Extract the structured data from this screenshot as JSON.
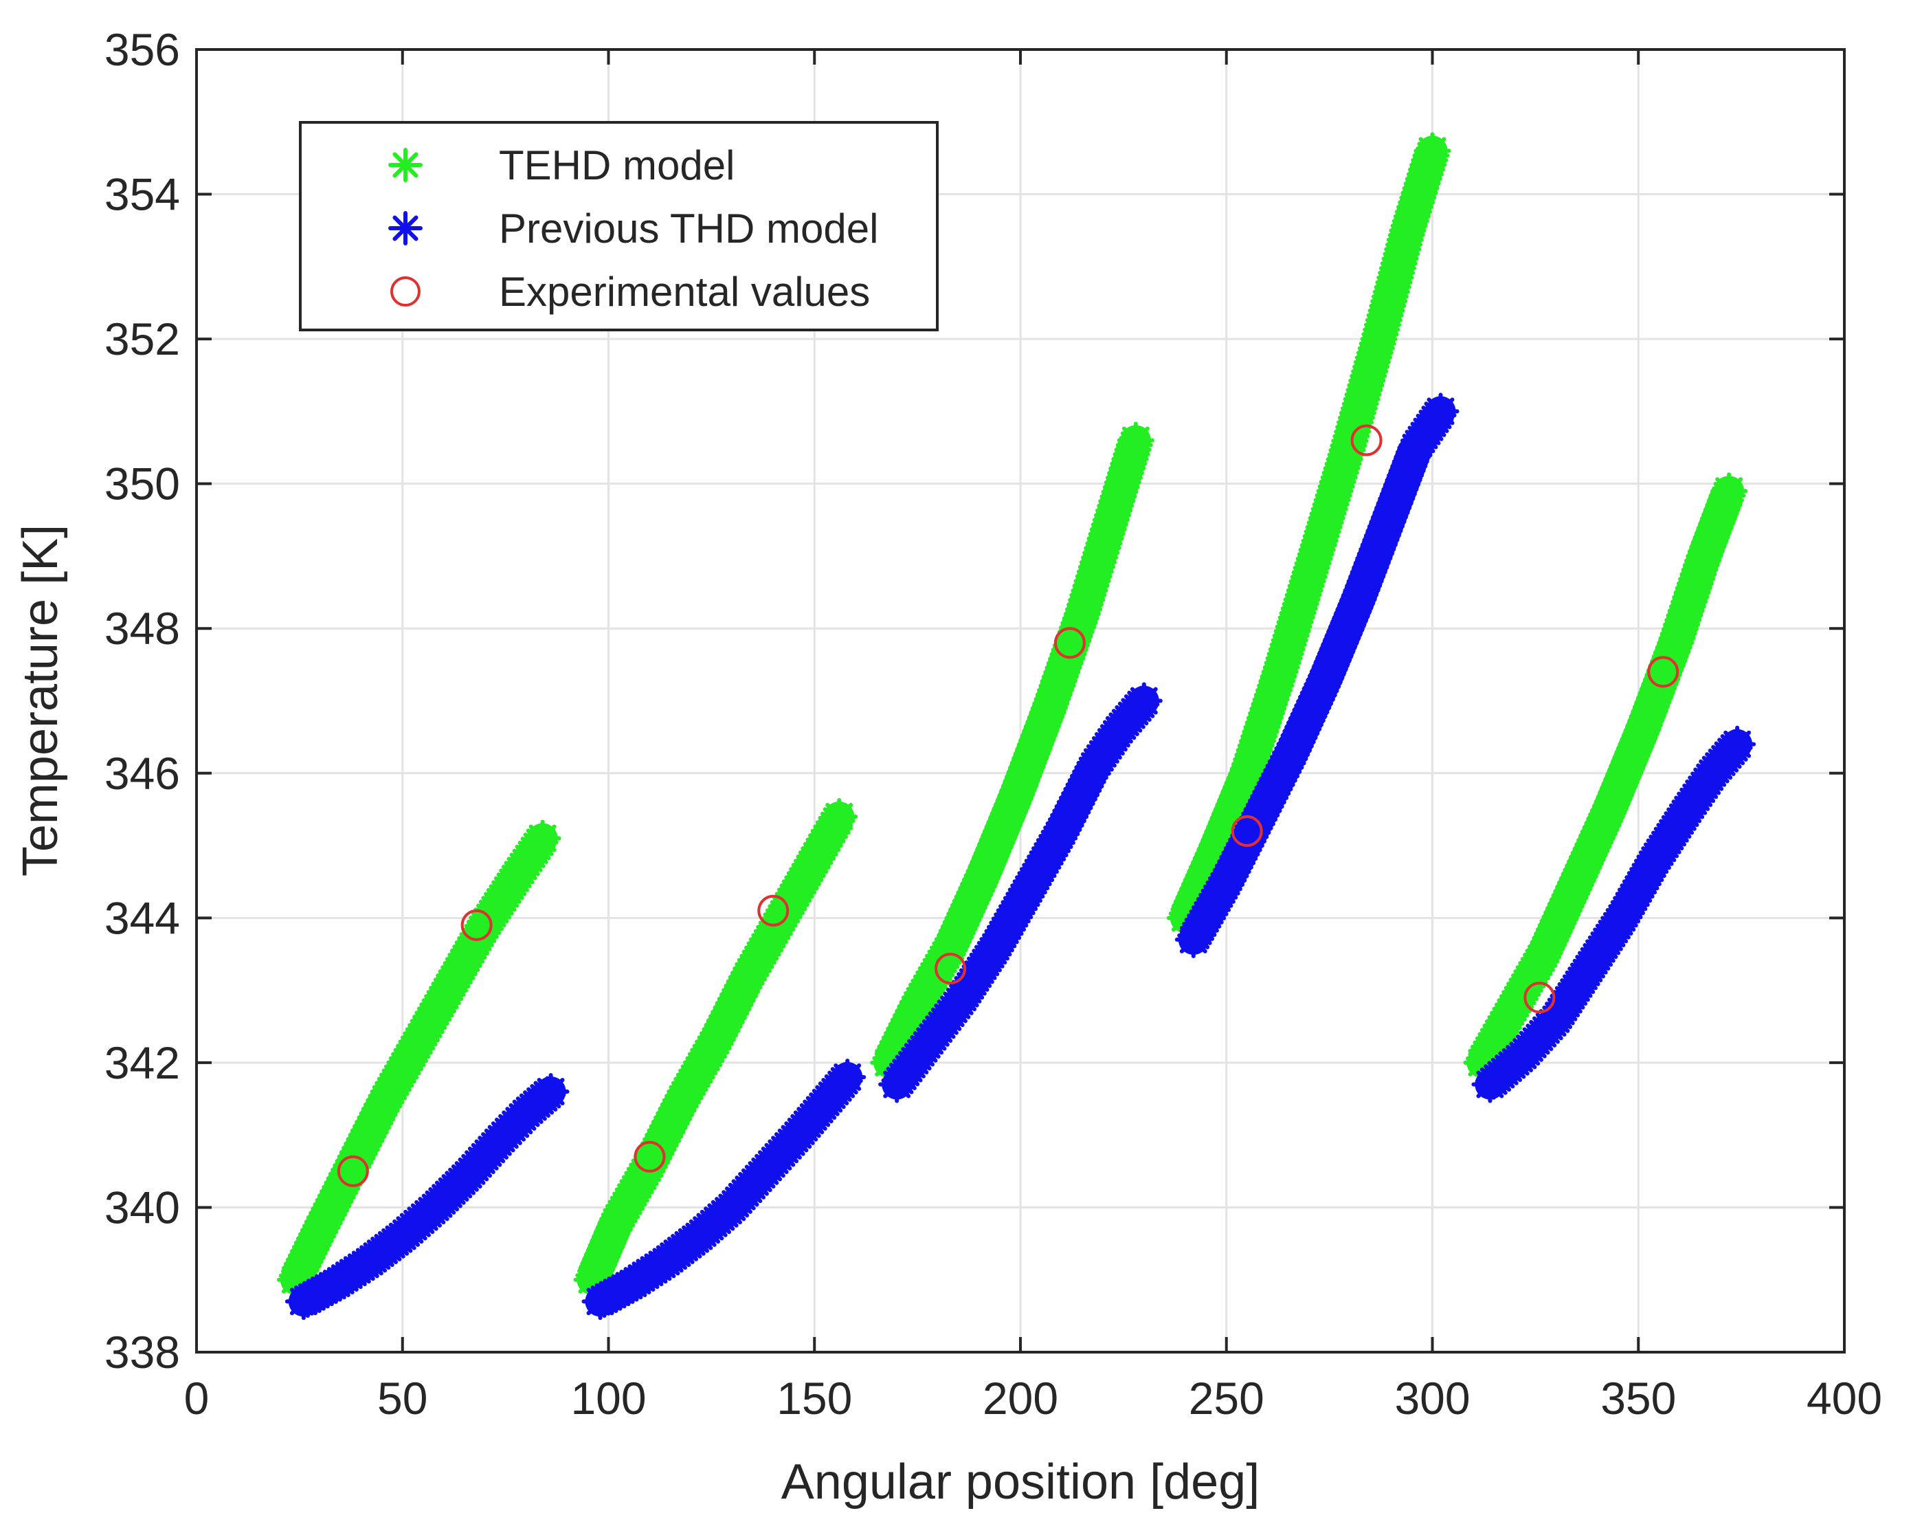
{
  "chart_data": {
    "type": "scatter",
    "xlabel": "Angular position [deg]",
    "ylabel": "Temperature [K]",
    "xlim": [
      0,
      400
    ],
    "ylim": [
      338,
      356
    ],
    "xticks": [
      0,
      50,
      100,
      150,
      200,
      250,
      300,
      350,
      400
    ],
    "yticks": [
      338,
      340,
      342,
      344,
      346,
      348,
      350,
      352,
      354,
      356
    ],
    "grid": true,
    "legend_position": "top-left",
    "series": [
      {
        "name": "TEHD model",
        "marker": "asterisk",
        "color": "#22ee22",
        "segments": [
          {
            "x": [
              24,
              30,
              38,
              46,
              54,
              62,
              70,
              78,
              84
            ],
            "y": [
              339.0,
              339.7,
              340.6,
              341.5,
              342.3,
              343.1,
              343.9,
              344.6,
              345.1
            ]
          },
          {
            "x": [
              96,
              102,
              110,
              118,
              126,
              134,
              142,
              150,
              156
            ],
            "y": [
              339.0,
              339.8,
              340.6,
              341.5,
              342.3,
              343.2,
              344.0,
              344.8,
              345.4
            ]
          },
          {
            "x": [
              168,
              175,
              183,
              191,
              199,
              207,
              215,
              222,
              228
            ],
            "y": [
              342.0,
              342.8,
              343.6,
              344.6,
              345.7,
              346.9,
              348.2,
              349.5,
              350.6
            ]
          },
          {
            "x": [
              240,
              247,
              255,
              263,
              271,
              279,
              287,
              294,
              300
            ],
            "y": [
              344.0,
              344.9,
              346.0,
              347.4,
              348.9,
              350.4,
              352.0,
              353.5,
              354.6
            ]
          },
          {
            "x": [
              312,
              319,
              327,
              335,
              343,
              351,
              359,
              366,
              372
            ],
            "y": [
              342.0,
              342.7,
              343.5,
              344.5,
              345.5,
              346.6,
              347.8,
              349.0,
              349.9
            ]
          }
        ]
      },
      {
        "name": "Previous THD model",
        "marker": "asterisk",
        "color": "#1010ee",
        "segments": [
          {
            "x": [
              26,
              34,
              42,
              50,
              58,
              66,
              74,
              80,
              86
            ],
            "y": [
              338.7,
              338.95,
              339.25,
              339.6,
              340.0,
              340.45,
              340.95,
              341.3,
              341.6
            ]
          },
          {
            "x": [
              98,
              106,
              114,
              122,
              130,
              138,
              146,
              152,
              158
            ],
            "y": [
              338.7,
              338.95,
              339.25,
              339.6,
              340.0,
              340.5,
              341.0,
              341.4,
              341.8
            ]
          },
          {
            "x": [
              170,
              178,
              186,
              194,
              202,
              210,
              218,
              224,
              230
            ],
            "y": [
              341.7,
              342.3,
              342.9,
              343.6,
              344.4,
              345.2,
              346.1,
              346.6,
              347.0
            ]
          },
          {
            "x": [
              242,
              250,
              258,
              266,
              274,
              282,
              290,
              296,
              302
            ],
            "y": [
              343.7,
              344.5,
              345.4,
              346.3,
              347.3,
              348.4,
              349.6,
              350.5,
              351.0
            ]
          },
          {
            "x": [
              314,
              322,
              330,
              338,
              346,
              354,
              362,
              368,
              374
            ],
            "y": [
              341.7,
              342.1,
              342.6,
              343.3,
              344.0,
              344.8,
              345.5,
              346.0,
              346.4
            ]
          }
        ]
      },
      {
        "name": "Experimental values",
        "marker": "circle",
        "color": "#e03030",
        "x": [
          38,
          68,
          110,
          140,
          183,
          212,
          255,
          284,
          326,
          356
        ],
        "y": [
          340.5,
          343.9,
          340.7,
          344.1,
          343.3,
          347.8,
          345.2,
          350.6,
          342.9,
          347.4
        ]
      }
    ]
  }
}
